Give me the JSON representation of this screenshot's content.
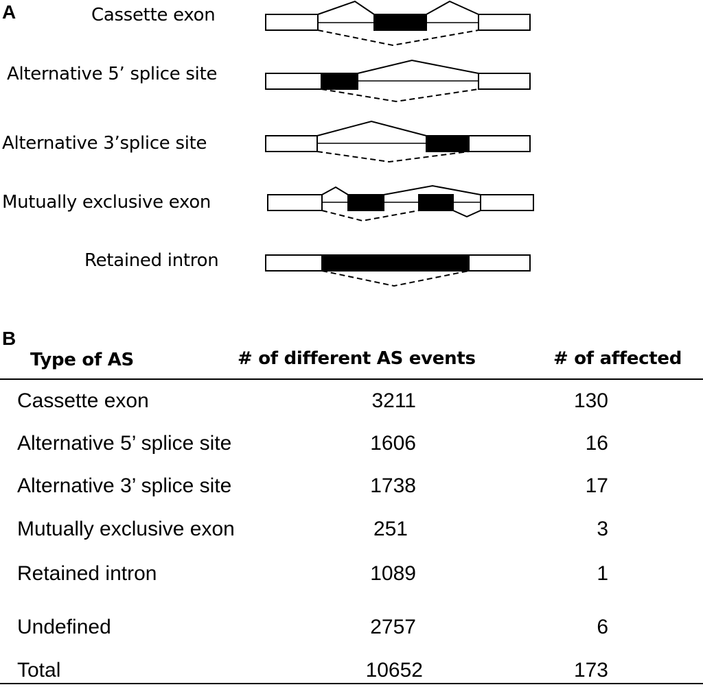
{
  "panel_a": {
    "letter": "A",
    "events": [
      {
        "label": "Cassette exon"
      },
      {
        "label": "Alternative 5’ splice site"
      },
      {
        "label": "Alternative 3’splice site"
      },
      {
        "label": "Mutually exclusive exon"
      },
      {
        "label": "Retained intron"
      }
    ]
  },
  "panel_b": {
    "letter": "B",
    "headers": {
      "type": "Type of AS",
      "events": "# of different AS events",
      "affected": "# of affected"
    },
    "rows": [
      {
        "type": "Cassette exon",
        "events": "3211",
        "affected": "130"
      },
      {
        "type": "Alternative 5’ splice site",
        "events": "1606",
        "affected": "16"
      },
      {
        "type": "Alternative 3’ splice site",
        "events": "1738",
        "affected": "17"
      },
      {
        "type": "Mutually exclusive exon",
        "events": "251",
        "affected": "3"
      },
      {
        "type": "Retained intron",
        "events": "1089",
        "affected": "1"
      },
      {
        "type": "Undefined",
        "events": "2757",
        "affected": "6"
      },
      {
        "type": "Total",
        "events": "10652",
        "affected": "173"
      }
    ]
  },
  "colors": {
    "stroke": "#000000",
    "alt_exon": "#000000",
    "const_exon": "#ffffff"
  }
}
